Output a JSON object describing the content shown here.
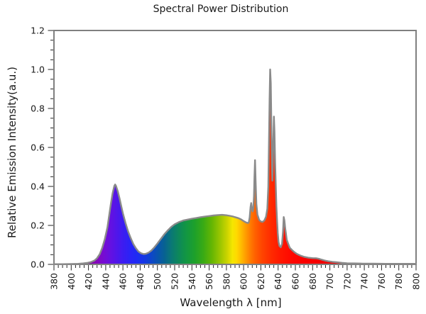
{
  "page": {
    "background": "#ffffff"
  },
  "chart_data": {
    "type": "area",
    "title": "Spectral Power Distribution",
    "xlabel": "Wavelength λ [nm]",
    "ylabel": "Relative Emission Intensity(a.u.)",
    "xlim": [
      380,
      800
    ],
    "ylim": [
      0.0,
      1.2
    ],
    "x_major_tick_step": 20,
    "x_minor_tick_step": 5,
    "y_major_tick_step": 0.2,
    "y_minor_tick_step": 0.05,
    "grid": false,
    "legend": false,
    "x_tick_labels_rotated_degrees": -90,
    "series": [
      {
        "name": "relative emission intensity",
        "points": [
          [
            380,
            0.001
          ],
          [
            390,
            0.001
          ],
          [
            400,
            0.002
          ],
          [
            408,
            0.003
          ],
          [
            414,
            0.005
          ],
          [
            419,
            0.008
          ],
          [
            423,
            0.012
          ],
          [
            427,
            0.02
          ],
          [
            430,
            0.032
          ],
          [
            433,
            0.052
          ],
          [
            436,
            0.085
          ],
          [
            439,
            0.13
          ],
          [
            442,
            0.19
          ],
          [
            444,
            0.25
          ],
          [
            446,
            0.31
          ],
          [
            448,
            0.365
          ],
          [
            450,
            0.402
          ],
          [
            451,
            0.41
          ],
          [
            452,
            0.402
          ],
          [
            454,
            0.375
          ],
          [
            456,
            0.34
          ],
          [
            458,
            0.3
          ],
          [
            460,
            0.262
          ],
          [
            463,
            0.212
          ],
          [
            466,
            0.17
          ],
          [
            469,
            0.135
          ],
          [
            472,
            0.105
          ],
          [
            475,
            0.083
          ],
          [
            478,
            0.066
          ],
          [
            481,
            0.057
          ],
          [
            484,
            0.053
          ],
          [
            487,
            0.055
          ],
          [
            490,
            0.061
          ],
          [
            493,
            0.071
          ],
          [
            496,
            0.085
          ],
          [
            500,
            0.107
          ],
          [
            504,
            0.131
          ],
          [
            508,
            0.154
          ],
          [
            512,
            0.174
          ],
          [
            516,
            0.192
          ],
          [
            520,
            0.206
          ],
          [
            525,
            0.217
          ],
          [
            530,
            0.225
          ],
          [
            535,
            0.23
          ],
          [
            540,
            0.234
          ],
          [
            545,
            0.238
          ],
          [
            550,
            0.242
          ],
          [
            555,
            0.245
          ],
          [
            560,
            0.248
          ],
          [
            565,
            0.251
          ],
          [
            570,
            0.253
          ],
          [
            575,
            0.254
          ],
          [
            580,
            0.252
          ],
          [
            584,
            0.249
          ],
          [
            588,
            0.245
          ],
          [
            591,
            0.241
          ],
          [
            594,
            0.237
          ],
          [
            597,
            0.231
          ],
          [
            600,
            0.222
          ],
          [
            603,
            0.215
          ],
          [
            605,
            0.212
          ],
          [
            606,
            0.216
          ],
          [
            607,
            0.24
          ],
          [
            608,
            0.295
          ],
          [
            608.8,
            0.315
          ],
          [
            609.6,
            0.288
          ],
          [
            610.5,
            0.272
          ],
          [
            611.3,
            0.29
          ],
          [
            612,
            0.35
          ],
          [
            612.6,
            0.45
          ],
          [
            613.2,
            0.535
          ],
          [
            614,
            0.42
          ],
          [
            614.8,
            0.31
          ],
          [
            616,
            0.255
          ],
          [
            618,
            0.228
          ],
          [
            620,
            0.22
          ],
          [
            622,
            0.218
          ],
          [
            624,
            0.225
          ],
          [
            626,
            0.245
          ],
          [
            627.5,
            0.285
          ],
          [
            628.6,
            0.4
          ],
          [
            629.4,
            0.62
          ],
          [
            630.1,
            0.85
          ],
          [
            630.8,
            1.0
          ],
          [
            631.5,
            0.93
          ],
          [
            632.2,
            0.72
          ],
          [
            632.9,
            0.5
          ],
          [
            633.3,
            0.43
          ],
          [
            633.8,
            0.5
          ],
          [
            634.4,
            0.62
          ],
          [
            635.1,
            0.758
          ],
          [
            635.8,
            0.68
          ],
          [
            636.5,
            0.52
          ],
          [
            637.2,
            0.42
          ],
          [
            638,
            0.3
          ],
          [
            638.8,
            0.22
          ],
          [
            639.6,
            0.16
          ],
          [
            640.5,
            0.115
          ],
          [
            641.5,
            0.095
          ],
          [
            643,
            0.088
          ],
          [
            644.5,
            0.105
          ],
          [
            645.7,
            0.168
          ],
          [
            646.5,
            0.243
          ],
          [
            647.3,
            0.225
          ],
          [
            648.2,
            0.185
          ],
          [
            649,
            0.162
          ],
          [
            650,
            0.126
          ],
          [
            651.5,
            0.108
          ],
          [
            653.5,
            0.086
          ],
          [
            656,
            0.074
          ],
          [
            659,
            0.062
          ],
          [
            662,
            0.053
          ],
          [
            666,
            0.045
          ],
          [
            670,
            0.039
          ],
          [
            675,
            0.034
          ],
          [
            680,
            0.032
          ],
          [
            684,
            0.0315
          ],
          [
            687,
            0.029
          ],
          [
            690,
            0.025
          ],
          [
            694,
            0.02
          ],
          [
            698,
            0.016
          ],
          [
            703,
            0.013
          ],
          [
            708,
            0.011
          ],
          [
            714,
            0.008
          ],
          [
            720,
            0.006
          ],
          [
            728,
            0.005
          ],
          [
            738,
            0.004
          ],
          [
            750,
            0.0035
          ],
          [
            765,
            0.003
          ],
          [
            780,
            0.003
          ],
          [
            800,
            0.003
          ]
        ]
      }
    ],
    "notable_peaks": [
      {
        "wavelength_nm": 450,
        "intensity": 0.41
      },
      {
        "wavelength_nm": 609,
        "intensity": 0.32
      },
      {
        "wavelength_nm": 613,
        "intensity": 0.54
      },
      {
        "wavelength_nm": 631,
        "intensity": 1.0
      },
      {
        "wavelength_nm": 635,
        "intensity": 0.76
      },
      {
        "wavelength_nm": 647,
        "intensity": 0.24
      }
    ],
    "style": {
      "background": "#ffffff",
      "plot_border_color": "#808080",
      "curve_stroke_color": "#8a8a8a",
      "curve_stroke_width": 2.4,
      "tick_color": "#262626",
      "text_color": "#1a1a1a",
      "fill_description": "visible-spectrum gradient keyed to wavelength",
      "spectrum_gradient": [
        [
          380,
          "#5e006e"
        ],
        [
          408,
          "#6f0086"
        ],
        [
          420,
          "#80009e"
        ],
        [
          430,
          "#8507bd"
        ],
        [
          438,
          "#750cd3"
        ],
        [
          446,
          "#6311e2"
        ],
        [
          453,
          "#5016ea"
        ],
        [
          460,
          "#3d1cf1"
        ],
        [
          468,
          "#2b23f6"
        ],
        [
          476,
          "#1f2bf4"
        ],
        [
          484,
          "#1536e6"
        ],
        [
          492,
          "#0e44cd"
        ],
        [
          500,
          "#0953af"
        ],
        [
          508,
          "#076292"
        ],
        [
          516,
          "#0a7776"
        ],
        [
          524,
          "#0d875c"
        ],
        [
          533,
          "#129643"
        ],
        [
          543,
          "#1da02b"
        ],
        [
          553,
          "#38aa15"
        ],
        [
          563,
          "#64b603"
        ],
        [
          573,
          "#9cc600"
        ],
        [
          581,
          "#ccd400"
        ],
        [
          587,
          "#f5e600"
        ],
        [
          592,
          "#ffd900"
        ],
        [
          597,
          "#ffbc00"
        ],
        [
          602,
          "#ff9e00"
        ],
        [
          607,
          "#ff8000"
        ],
        [
          613,
          "#ff6200"
        ],
        [
          621,
          "#ff4600"
        ],
        [
          631,
          "#ff2d00"
        ],
        [
          643,
          "#ff1700"
        ],
        [
          656,
          "#ff0800"
        ],
        [
          672,
          "#fb0000"
        ],
        [
          692,
          "#f30000"
        ],
        [
          715,
          "#e70000"
        ],
        [
          745,
          "#d90000"
        ],
        [
          800,
          "#c60000"
        ]
      ]
    }
  }
}
